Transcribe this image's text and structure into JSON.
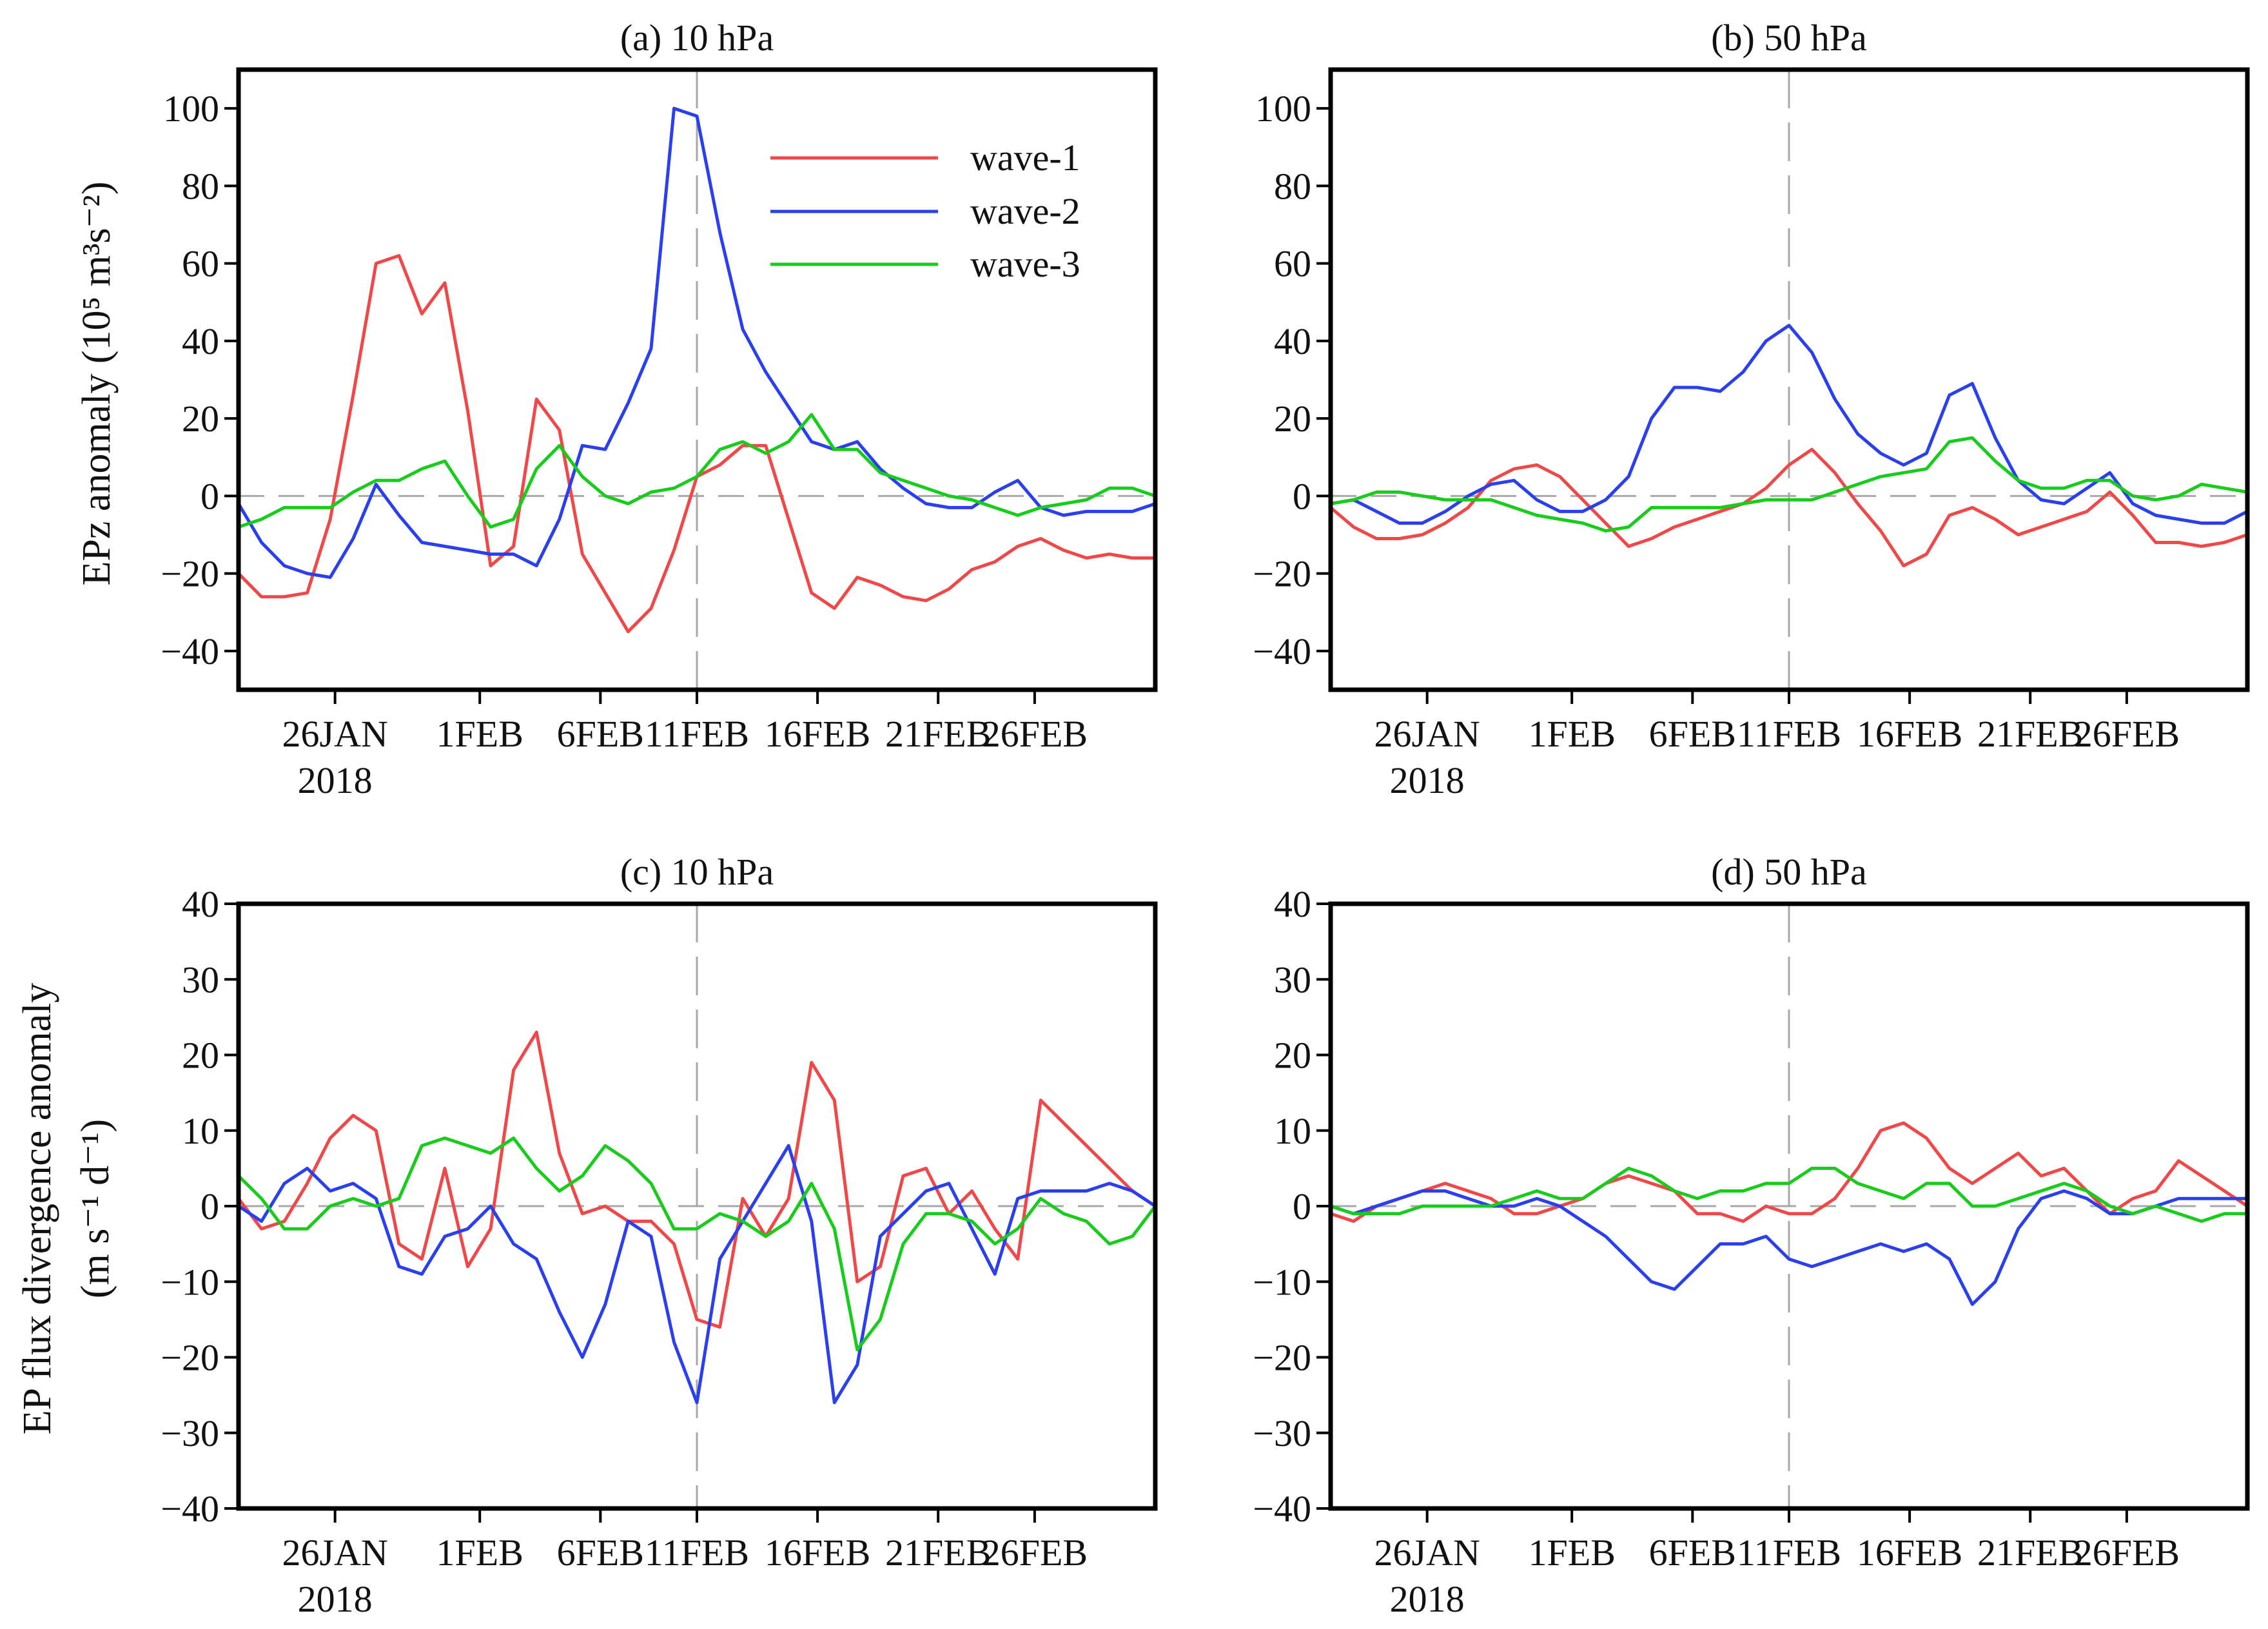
{
  "colors": {
    "wave1": "#f04848",
    "wave2": "#2a3ff0",
    "wave3": "#18cc1c",
    "frame": "#000000",
    "zero_line": "#a8a8a8"
  },
  "legend": [
    "wave-1",
    "wave-2",
    "wave-3"
  ],
  "row_ylabels": {
    "top": "EPz anomaly (10⁵ m³s⁻²)",
    "bottom_line1": "EP flux divergence anomaly",
    "bottom_line2": "(m s⁻¹ d⁻¹)"
  },
  "x_tick_labels": [
    "26JAN",
    "1FEB",
    "6FEB",
    "11FEB",
    "16FEB",
    "21FEB",
    "26FEB"
  ],
  "x_tick_year": "2018",
  "chart_data": [
    {
      "type": "line",
      "title": "(a) 10 hPa",
      "ylabel": "EPz anomaly (10⁵ m³s⁻²)",
      "x_range_days": [
        0,
        38
      ],
      "x_ticks_days": [
        4,
        10,
        15,
        19,
        24,
        29,
        33
      ],
      "ylim": [
        -50,
        110
      ],
      "yticks": [
        -40,
        -20,
        0,
        20,
        40,
        60,
        80,
        100
      ],
      "reference_vline_day": 19,
      "series": [
        {
          "name": "wave-1",
          "values": [
            -20,
            -26,
            -26,
            -25,
            -6,
            26,
            60,
            62,
            47,
            55,
            22,
            -18,
            -13,
            25,
            17,
            -15,
            -25,
            -35,
            -29,
            -14,
            5,
            8,
            13,
            13,
            -6,
            -25,
            -29,
            -21,
            -23,
            -26,
            -27,
            -24,
            -19,
            -17,
            -13,
            -11,
            -14,
            -16,
            -15,
            -16,
            -16
          ]
        },
        {
          "name": "wave-2",
          "values": [
            -2,
            -12,
            -18,
            -20,
            -21,
            -11,
            3,
            -5,
            -12,
            -13,
            -14,
            -15,
            -15,
            -18,
            -6,
            13,
            12,
            24,
            38,
            100,
            98,
            68,
            43,
            32,
            23,
            14,
            12,
            14,
            7,
            2,
            -2,
            -3,
            -3,
            1,
            4,
            -3,
            -5,
            -4,
            -4,
            -4,
            -2
          ]
        },
        {
          "name": "wave-3",
          "values": [
            -8,
            -6,
            -3,
            -3,
            -3,
            1,
            4,
            4,
            7,
            9,
            0,
            -8,
            -6,
            7,
            13,
            5,
            0,
            -2,
            1,
            2,
            5,
            12,
            14,
            11,
            14,
            21,
            12,
            12,
            6,
            4,
            2,
            0,
            -1,
            -3,
            -5,
            -3,
            -2,
            -1,
            2,
            2,
            0
          ]
        }
      ]
    },
    {
      "type": "line",
      "title": "(b) 50 hPa",
      "x_range_days": [
        0,
        38
      ],
      "x_ticks_days": [
        4,
        10,
        15,
        19,
        24,
        29,
        33
      ],
      "ylim": [
        -50,
        110
      ],
      "yticks": [
        -40,
        -20,
        0,
        20,
        40,
        60,
        80,
        100
      ],
      "reference_vline_day": 19,
      "series": [
        {
          "name": "wave-1",
          "values": [
            -3,
            -8,
            -11,
            -11,
            -10,
            -7,
            -3,
            4,
            7,
            8,
            5,
            -1,
            -7,
            -13,
            -11,
            -8,
            -6,
            -4,
            -2,
            2,
            8,
            12,
            6,
            -2,
            -9,
            -18,
            -15,
            -5,
            -3,
            -6,
            -10,
            -8,
            -6,
            -4,
            1,
            -5,
            -12,
            -12,
            -13,
            -12,
            -10
          ]
        },
        {
          "name": "wave-2",
          "values": [
            -2,
            -1,
            -4,
            -7,
            -7,
            -4,
            0,
            3,
            4,
            -1,
            -4,
            -4,
            -1,
            5,
            20,
            28,
            28,
            27,
            32,
            40,
            44,
            37,
            25,
            16,
            11,
            8,
            11,
            26,
            29,
            15,
            4,
            -1,
            -2,
            2,
            6,
            -2,
            -5,
            -6,
            -7,
            -7,
            -4
          ]
        },
        {
          "name": "wave-3",
          "values": [
            -2,
            -1,
            1,
            1,
            0,
            -1,
            -1,
            -1,
            -3,
            -5,
            -6,
            -7,
            -9,
            -8,
            -3,
            -3,
            -3,
            -3,
            -2,
            -1,
            -1,
            -1,
            1,
            3,
            5,
            6,
            7,
            14,
            15,
            9,
            4,
            2,
            2,
            4,
            4,
            0,
            -1,
            0,
            3,
            2,
            1
          ]
        }
      ]
    },
    {
      "type": "line",
      "title": "(c) 10 hPa",
      "ylabel": "EP flux divergence anomaly (m s⁻¹ d⁻¹)",
      "x_range_days": [
        0,
        38
      ],
      "x_ticks_days": [
        4,
        10,
        15,
        19,
        24,
        29,
        33
      ],
      "ylim": [
        -40,
        40
      ],
      "yticks": [
        -40,
        -30,
        -20,
        -10,
        0,
        10,
        20,
        30,
        40
      ],
      "reference_vline_day": 19,
      "series": [
        {
          "name": "wave-1",
          "values": [
            1,
            -3,
            -2,
            3,
            9,
            12,
            10,
            -5,
            -7,
            5,
            -8,
            -3,
            18,
            23,
            7,
            -1,
            0,
            -2,
            -2,
            -5,
            -15,
            -16,
            1,
            -4,
            1,
            19,
            14,
            -10,
            -8,
            4,
            5,
            -1,
            2,
            -3,
            -7,
            14,
            11,
            8,
            5,
            2,
            0
          ]
        },
        {
          "name": "wave-2",
          "values": [
            0,
            -2,
            3,
            5,
            2,
            3,
            1,
            -8,
            -9,
            -4,
            -3,
            0,
            -5,
            -7,
            -14,
            -20,
            -13,
            -2,
            -4,
            -18,
            -26,
            -7,
            -2,
            3,
            8,
            -2,
            -26,
            -21,
            -4,
            -1,
            2,
            3,
            -3,
            -9,
            1,
            2,
            2,
            2,
            3,
            2,
            0
          ]
        },
        {
          "name": "wave-3",
          "values": [
            4,
            1,
            -3,
            -3,
            0,
            1,
            0,
            1,
            8,
            9,
            8,
            7,
            9,
            5,
            2,
            4,
            8,
            6,
            3,
            -3,
            -3,
            -1,
            -2,
            -4,
            -2,
            3,
            -3,
            -19,
            -15,
            -5,
            -1,
            -1,
            -2,
            -5,
            -3,
            1,
            -1,
            -2,
            -5,
            -4,
            0
          ]
        }
      ]
    },
    {
      "type": "line",
      "title": "(d) 50 hPa",
      "x_range_days": [
        0,
        38
      ],
      "x_ticks_days": [
        4,
        10,
        15,
        19,
        24,
        29,
        33
      ],
      "ylim": [
        -40,
        40
      ],
      "yticks": [
        -40,
        -30,
        -20,
        -10,
        0,
        10,
        20,
        30,
        40
      ],
      "reference_vline_day": 19,
      "series": [
        {
          "name": "wave-1",
          "values": [
            -1,
            -2,
            0,
            1,
            2,
            3,
            2,
            1,
            -1,
            -1,
            0,
            1,
            3,
            4,
            3,
            2,
            -1,
            -1,
            -2,
            0,
            -1,
            -1,
            1,
            5,
            10,
            11,
            9,
            5,
            3,
            5,
            7,
            4,
            5,
            2,
            -1,
            1,
            2,
            6,
            4,
            2,
            0
          ]
        },
        {
          "name": "wave-2",
          "values": [
            0,
            -1,
            0,
            1,
            2,
            2,
            1,
            0,
            0,
            1,
            0,
            -2,
            -4,
            -7,
            -10,
            -11,
            -8,
            -5,
            -5,
            -4,
            -7,
            -8,
            -7,
            -6,
            -5,
            -6,
            -5,
            -7,
            -13,
            -10,
            -3,
            1,
            2,
            1,
            -1,
            -1,
            0,
            1,
            1,
            1,
            1
          ]
        },
        {
          "name": "wave-3",
          "values": [
            0,
            -1,
            -1,
            -1,
            0,
            0,
            0,
            0,
            1,
            2,
            1,
            1,
            3,
            5,
            4,
            2,
            1,
            2,
            2,
            3,
            3,
            5,
            5,
            3,
            2,
            1,
            3,
            3,
            0,
            0,
            1,
            2,
            3,
            2,
            0,
            -1,
            0,
            -1,
            -2,
            -1,
            -1
          ]
        }
      ]
    }
  ]
}
